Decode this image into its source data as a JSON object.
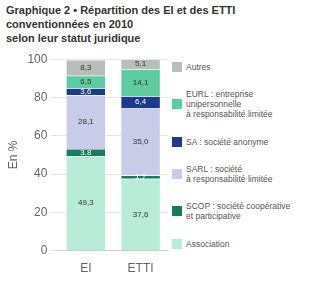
{
  "chart_data": {
    "type": "bar",
    "title": "Graphique 2 • Répartition des EI et des ETTI\nconventionnées en 2010\nselon leur statut juridique",
    "categories": [
      "EI",
      "ETTI"
    ],
    "ylabel": "En %",
    "ylim": [
      0,
      100
    ],
    "yticks": [
      0,
      20,
      40,
      60,
      80,
      100
    ],
    "grid": true,
    "stacked": true,
    "data_labels": true,
    "legend": "right",
    "series": [
      {
        "name": "Association",
        "color": "#b8ecd8",
        "values": [
          49.3,
          37.6
        ],
        "value_labels": [
          "49,3",
          "37,6"
        ]
      },
      {
        "name": "SCOP : société coopérative\net participative",
        "color": "#1a7a5e",
        "values": [
          3.8,
          1.7
        ],
        "value_labels": [
          "3,8",
          "1,7"
        ]
      },
      {
        "name": "SARL : société\nà responsabilité limitée",
        "color": "#c8cce8",
        "values": [
          28.1,
          35.0
        ],
        "value_labels": [
          "28,1",
          "35,0"
        ]
      },
      {
        "name": "SA : société anonyme",
        "color": "#1e3a8a",
        "values": [
          3.6,
          6.4
        ],
        "value_labels": [
          "3,6",
          "6,4"
        ]
      },
      {
        "name": "EURL : entreprise\nunipersonnelle\nà responsabilité limitée",
        "color": "#5ecba0",
        "values": [
          6.5,
          14.1
        ],
        "value_labels": [
          "6,5",
          "14,1"
        ]
      },
      {
        "name": "Autres",
        "color": "#b8beb8",
        "values": [
          8.3,
          5.1
        ],
        "value_labels": [
          "8,3",
          "5,1"
        ]
      }
    ]
  }
}
